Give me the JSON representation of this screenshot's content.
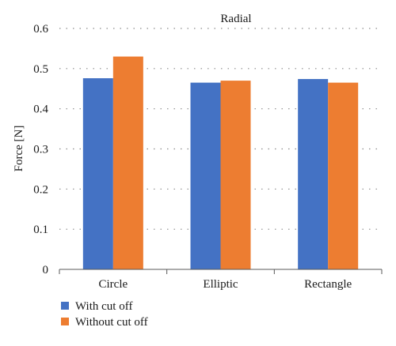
{
  "chart_data": {
    "type": "bar",
    "title": "Radial",
    "xlabel": "",
    "ylabel": "Force [N]",
    "categories": [
      "Circle",
      "Elliptic",
      "Rectangle"
    ],
    "series": [
      {
        "name": "With cut off",
        "values": [
          0.476,
          0.465,
          0.474
        ],
        "color": "#4472C4"
      },
      {
        "name": "Without cut off",
        "values": [
          0.53,
          0.47,
          0.465
        ],
        "color": "#ED7D31"
      }
    ],
    "ylim": [
      0,
      0.6
    ],
    "yticks": [
      "0",
      "0.1",
      "0.2",
      "0.3",
      "0.4",
      "0.5",
      "0.6"
    ],
    "grid": "horizontal dotted",
    "legend_position": "bottom-left"
  }
}
